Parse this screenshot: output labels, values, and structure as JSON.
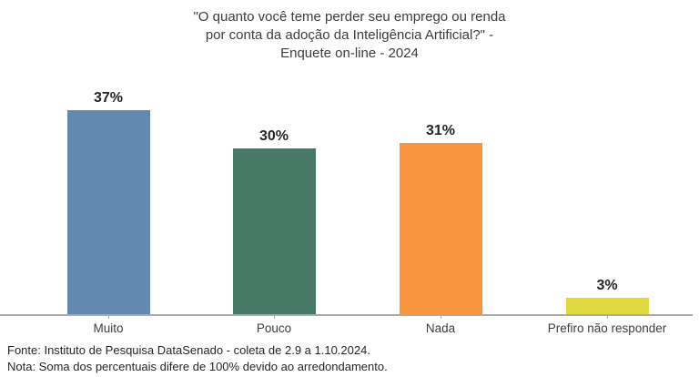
{
  "chart_data": {
    "type": "bar",
    "title": "\"O quanto você teme perder seu emprego ou renda por conta da adoção da Inteligência Artificial?\" - Enquete on-line - 2024",
    "title_lines": [
      "\"O quanto você teme perder seu emprego ou renda",
      "por conta da adoção da Inteligência Artificial?\" -",
      "Enquete on-line - 2024"
    ],
    "categories": [
      "Muito",
      "Pouco",
      "Nada",
      "Prefiro não responder"
    ],
    "values": [
      37,
      30,
      31,
      3
    ],
    "value_labels": [
      "37%",
      "30%",
      "31%",
      "3%"
    ],
    "bar_colors": [
      "#6489b1",
      "#477a66",
      "#f9953e",
      "#e0d93e"
    ],
    "xlabel": "",
    "ylabel": "",
    "ylim": [
      0,
      40
    ],
    "grid": false,
    "legend": "none"
  },
  "footer": {
    "source": "Fonte: Instituto de Pesquisa DataSenado - coleta de 2.9 a 1.10.2024.",
    "note": "Nota: Soma dos percentuais difere de 100% devido ao arredondamento."
  },
  "colors": {
    "axis_line": "#ababab",
    "tick": "#a6a6a6",
    "title_text": "#3d3d3d",
    "value_text": "#262626"
  }
}
